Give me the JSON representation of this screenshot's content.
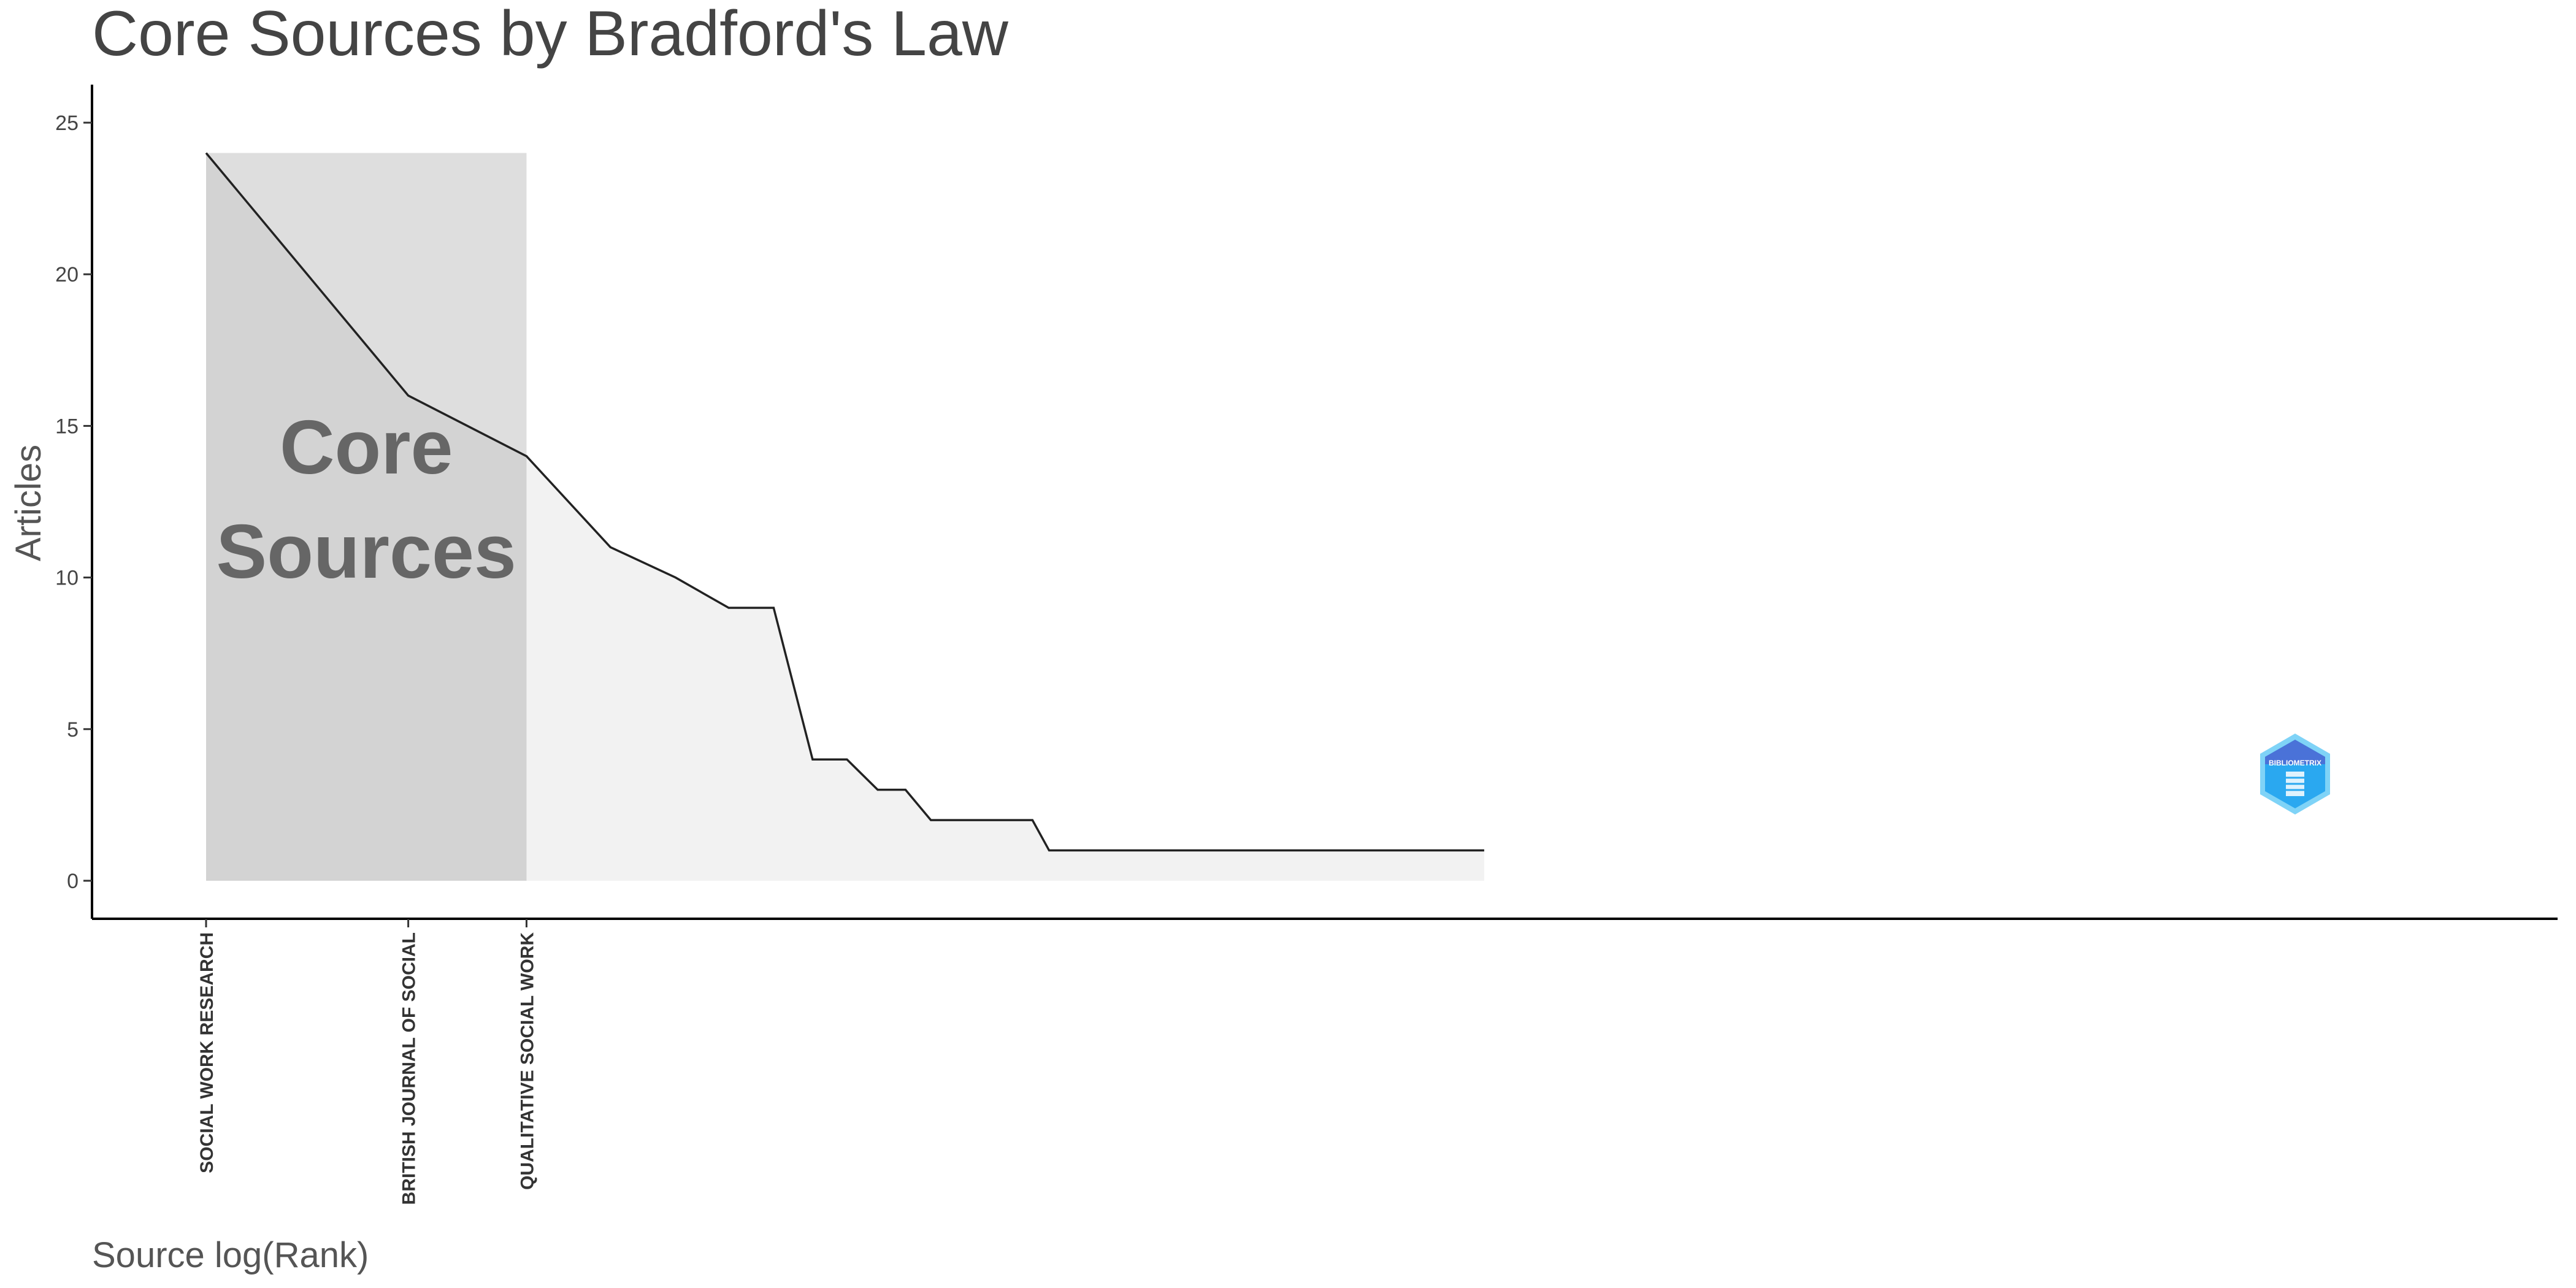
{
  "chart_data": {
    "type": "area",
    "title": "Core Sources by Bradford's Law",
    "xlabel": "Source log(Rank)",
    "ylabel": "Articles",
    "x_scale": "log",
    "ylim": [
      0,
      25
    ],
    "yticks": [
      0,
      5,
      10,
      15,
      20,
      25
    ],
    "grid": false,
    "legend": "none",
    "ranks": [
      1,
      2,
      3,
      4,
      5,
      6,
      7,
      8,
      9,
      10,
      11,
      12,
      13,
      14,
      15,
      16,
      17,
      18,
      19,
      20,
      21,
      22,
      23,
      24,
      25,
      26,
      27,
      28,
      29,
      30,
      31,
      32,
      33,
      34,
      35,
      36,
      37,
      38,
      39,
      40,
      41,
      42,
      43,
      44,
      45,
      46,
      47,
      48,
      49,
      50,
      51,
      52,
      53,
      54,
      55,
      56,
      57,
      58,
      59,
      60,
      61,
      62,
      63,
      64,
      65,
      66,
      67,
      68,
      69,
      70,
      71,
      72,
      73,
      74,
      75,
      76,
      77,
      78,
      79,
      80
    ],
    "articles": [
      24,
      16,
      14,
      11,
      10,
      9,
      9,
      4,
      4,
      3,
      3,
      2,
      2,
      2,
      2,
      2,
      2,
      1,
      1,
      1,
      1,
      1,
      1,
      1,
      1,
      1,
      1,
      1,
      1,
      1,
      1,
      1,
      1,
      1,
      1,
      1,
      1,
      1,
      1,
      1,
      1,
      1,
      1,
      1,
      1,
      1,
      1,
      1,
      1,
      1,
      1,
      1,
      1,
      1,
      1,
      1,
      1,
      1,
      1,
      1,
      1,
      1,
      1,
      1,
      1,
      1,
      1,
      1,
      1,
      1,
      1,
      1,
      1,
      1,
      1,
      1,
      1,
      1,
      1,
      1
    ],
    "core_zone_max_rank": 3,
    "core_label": [
      "Core",
      "Sources"
    ],
    "labeled_sources": [
      {
        "rank": 1,
        "name": "SOCIAL WORK RESEARCH"
      },
      {
        "rank": 2,
        "name": "BRITISH JOURNAL OF SOCIAL"
      },
      {
        "rank": 3,
        "name": "QUALITATIVE SOCIAL WORK"
      }
    ],
    "colors": {
      "core_band": "#dedede",
      "core_area": "#d3d3d3",
      "area": "#f2f2f2",
      "line": "#222222"
    }
  },
  "logo": {
    "name": "bibliometrix-logo",
    "text": "BIBLIOMETRIX",
    "colors": [
      "#4a72d8",
      "#2aa8f0",
      "#7fd3f7"
    ]
  }
}
